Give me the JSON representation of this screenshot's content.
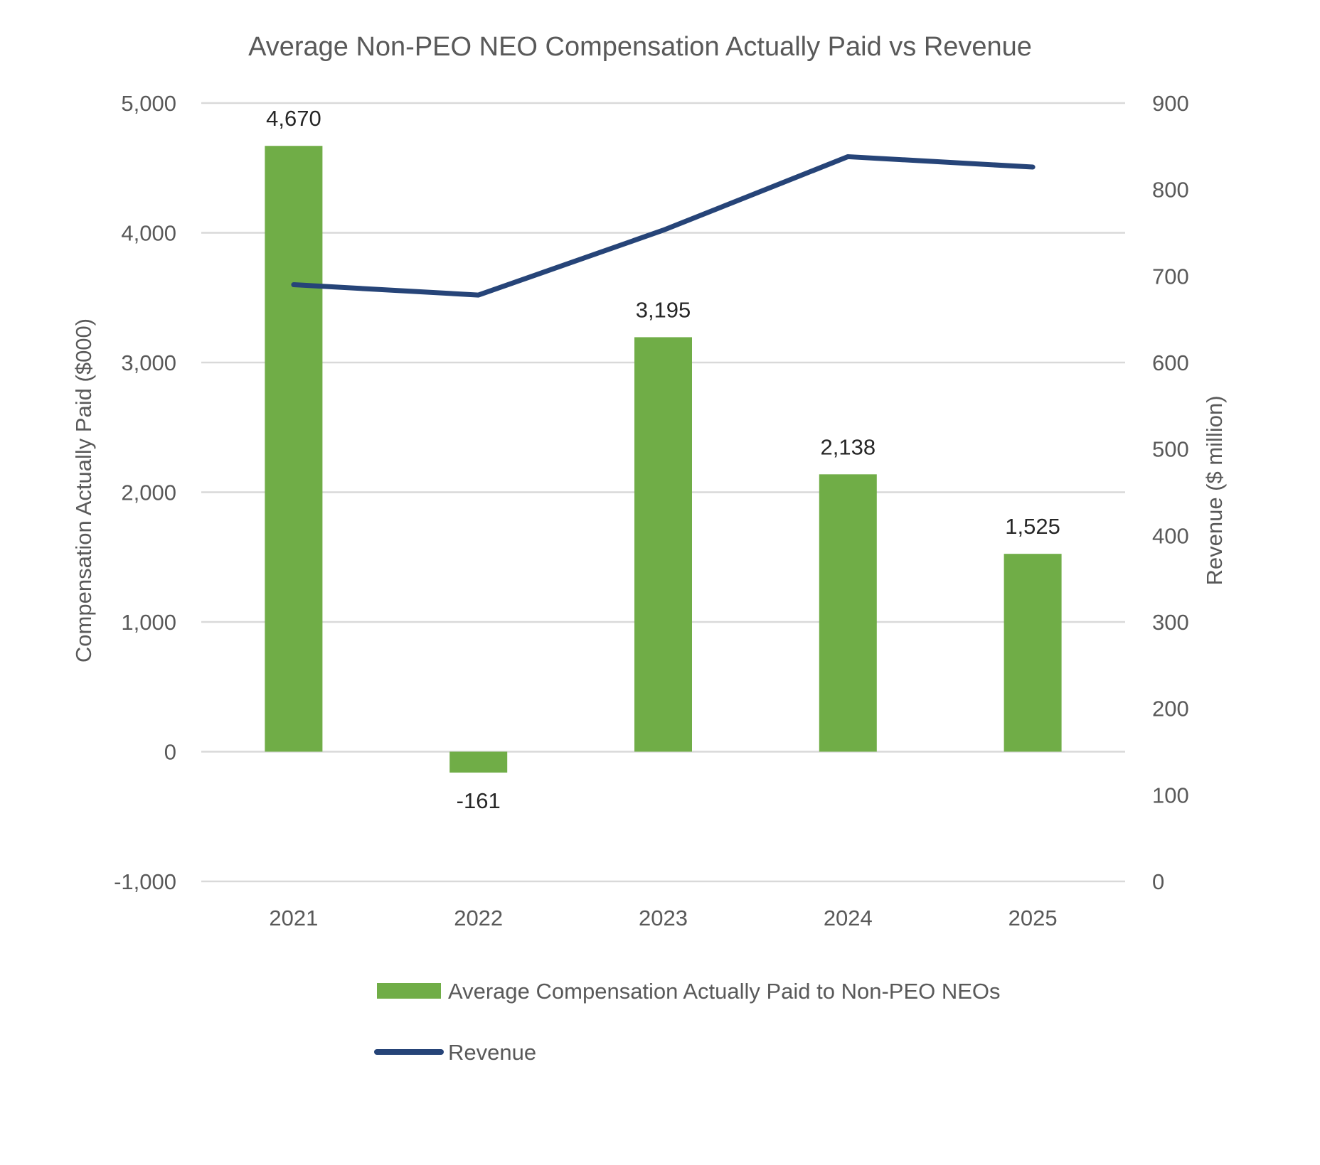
{
  "chart_data": {
    "type": "bar",
    "title": "Average Non-PEO NEO Compensation Actually Paid vs Revenue",
    "categories": [
      "2021",
      "2022",
      "2023",
      "2024",
      "2025"
    ],
    "ylabel": "Compensation Actually Paid ($000)",
    "y2label": "Revenue ($ million)",
    "ylim": [
      -1000,
      5000
    ],
    "y2lim": [
      0,
      900
    ],
    "yticks": [
      "-1,000",
      "0",
      "1,000",
      "2,000",
      "3,000",
      "4,000",
      "5,000"
    ],
    "y2ticks": [
      "0",
      "100",
      "200",
      "300",
      "400",
      "500",
      "600",
      "700",
      "800",
      "900"
    ],
    "grid": true,
    "legend_position": "bottom",
    "series": [
      {
        "name": "Average Compensation Actually Paid to Non-PEO NEOs",
        "type": "bar",
        "axis": "left",
        "color": "#70ad47",
        "values": [
          4670,
          -161,
          3195,
          2138,
          1525
        ],
        "labels": [
          "4,670",
          "-161",
          "3,195",
          "2,138",
          "1,525"
        ]
      },
      {
        "name": "Revenue",
        "type": "line",
        "axis": "right",
        "color": "#264478",
        "values": [
          690,
          678,
          753,
          838,
          826
        ]
      }
    ]
  }
}
